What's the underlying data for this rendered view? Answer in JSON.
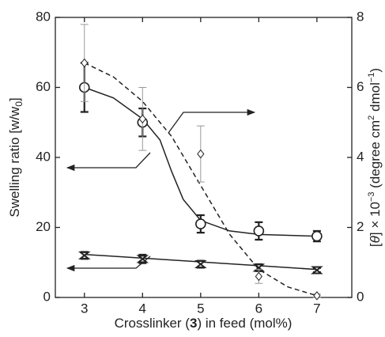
{
  "chart_data": {
    "type": "scatter",
    "x_label": [
      "Crosslinker (",
      "3",
      ") in feed  (mol%)"
    ],
    "y_label": [
      "Swelling ratio [w/w",
      "0",
      "]"
    ],
    "y2_label": [
      "[",
      "θ",
      "] × 10",
      "−3",
      " (degree cm",
      "2",
      " dmol",
      "−1",
      ")"
    ],
    "x": [
      3,
      4,
      5,
      6,
      7
    ],
    "xlim": [
      2.5,
      7.6
    ],
    "xticks": [
      3,
      4,
      5,
      6,
      7
    ],
    "ylim": [
      0,
      80
    ],
    "yticks": [
      0,
      20,
      40,
      60,
      80
    ],
    "y2lim": [
      0,
      8
    ],
    "y2ticks": [
      0,
      2,
      4,
      6,
      8
    ],
    "series": [
      {
        "marker": "circle",
        "color": "#222",
        "values": [
          60,
          50,
          21,
          19,
          17.5
        ],
        "errors": [
          7,
          4,
          2.5,
          2.5,
          1.5
        ]
      },
      {
        "marker": "cross",
        "color": "#222",
        "values": [
          12,
          11,
          9.5,
          8.5,
          7.8
        ],
        "errors": [
          1,
          1.2,
          1,
          1,
          0.6
        ]
      },
      {
        "marker": "diamond",
        "color": "#222",
        "axis": "y2",
        "values": [
          6.7,
          5.1,
          4.1,
          0.6,
          0.05
        ],
        "errors": [
          1.1,
          0.9,
          0.8,
          0.2,
          0.05
        ]
      }
    ],
    "fits": [
      {
        "dash": false,
        "x": [
          3,
          3.5,
          4,
          4.3,
          4.5,
          4.7,
          5,
          5.5,
          6,
          7
        ],
        "values": [
          60,
          57,
          51,
          45,
          36,
          28,
          22,
          19,
          18,
          17.5
        ]
      },
      {
        "dash": false,
        "x": [
          3,
          7
        ],
        "values": [
          12.3,
          8
        ]
      },
      {
        "dash": true,
        "axis": "y2",
        "x": [
          3,
          3.5,
          4,
          4.5,
          5,
          5.5,
          6,
          6.5,
          7
        ],
        "values": [
          6.7,
          6.3,
          5.6,
          4.6,
          3.2,
          1.8,
          0.8,
          0.3,
          0.05
        ]
      }
    ]
  }
}
